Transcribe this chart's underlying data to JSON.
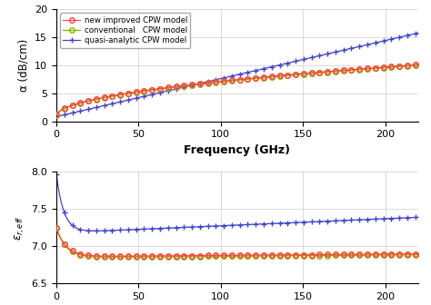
{
  "freq_max": 220,
  "alpha_ylim": [
    0,
    20
  ],
  "alpha_yticks": [
    0,
    5,
    10,
    15,
    20
  ],
  "eps_ylim": [
    6.5,
    8.0
  ],
  "eps_yticks": [
    6.5,
    7.0,
    7.5,
    8.0
  ],
  "xticks": [
    0,
    50,
    100,
    150,
    200
  ],
  "xlabel": "Frequency (GHz)",
  "alpha_ylabel": "α (dB/cm)",
  "legend_entries": [
    "new improved CPW model",
    "conventional   CPW model",
    "quasi-analytic CPW model"
  ],
  "colors": {
    "new_improved": "#FF4040",
    "conventional": "#88BB00",
    "quasi_analytic": "#4444CC"
  },
  "marker_new": "o",
  "marker_conv": "o",
  "marker_quasi": "+"
}
